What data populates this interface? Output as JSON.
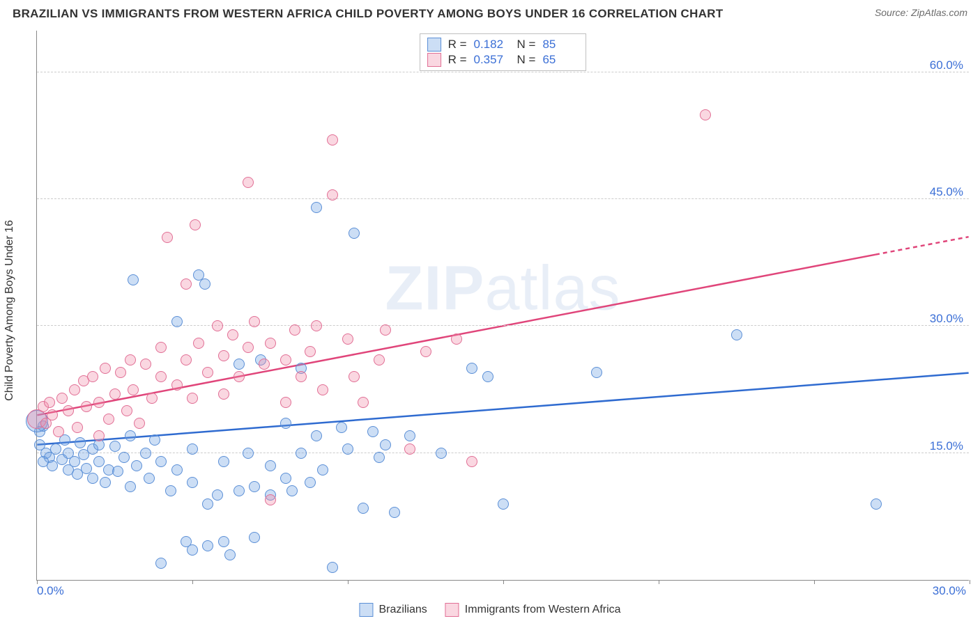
{
  "header": {
    "title": "BRAZILIAN VS IMMIGRANTS FROM WESTERN AFRICA CHILD POVERTY AMONG BOYS UNDER 16 CORRELATION CHART",
    "source_label": "Source: ",
    "source_value": "ZipAtlas.com"
  },
  "chart": {
    "type": "scatter",
    "ylabel": "Child Poverty Among Boys Under 16",
    "xlim": [
      0,
      30
    ],
    "ylim": [
      0,
      65
    ],
    "background_color": "#ffffff",
    "grid_color": "#cccccc",
    "axis_color": "#888888",
    "label_color": "#3b6fd6",
    "yticks": [
      15,
      30,
      45,
      60
    ],
    "ytick_labels": [
      "15.0%",
      "30.0%",
      "45.0%",
      "60.0%"
    ],
    "xticks": [
      0,
      5,
      10,
      15,
      20,
      25,
      30
    ],
    "xtick_labels_shown": {
      "0": "0.0%",
      "30": "30.0%"
    },
    "point_radius": 8,
    "series": [
      {
        "id": "brazilians",
        "label": "Brazilians",
        "color_fill": "rgba(110,160,225,0.35)",
        "color_stroke": "#5b8fd6",
        "R": "0.182",
        "N": "85",
        "trend": {
          "x1": 0,
          "y1": 16.0,
          "x2": 30,
          "y2": 24.5,
          "extrapolate_from": 30,
          "color": "#2f6bd0",
          "width": 2.5
        },
        "points": [
          [
            0.1,
            17.5
          ],
          [
            0.2,
            18.2
          ],
          [
            0.1,
            16.0
          ],
          [
            0.3,
            15.0
          ],
          [
            0.4,
            14.5
          ],
          [
            0.2,
            14.0
          ],
          [
            0.5,
            13.5
          ],
          [
            0.0,
            18.8,
            16
          ],
          [
            0.6,
            15.5
          ],
          [
            0.8,
            14.2
          ],
          [
            0.9,
            16.5
          ],
          [
            1.0,
            15.0
          ],
          [
            1.0,
            13.0
          ],
          [
            1.2,
            14.0
          ],
          [
            1.3,
            12.5
          ],
          [
            1.4,
            16.2
          ],
          [
            1.5,
            14.8
          ],
          [
            1.6,
            13.2
          ],
          [
            1.8,
            15.5
          ],
          [
            1.8,
            12.0
          ],
          [
            2.0,
            14.0
          ],
          [
            2.0,
            16.0
          ],
          [
            2.2,
            11.5
          ],
          [
            2.3,
            13.0
          ],
          [
            2.5,
            15.8
          ],
          [
            2.6,
            12.8
          ],
          [
            2.8,
            14.5
          ],
          [
            3.0,
            17.0
          ],
          [
            3.0,
            11.0
          ],
          [
            3.1,
            35.5
          ],
          [
            3.2,
            13.5
          ],
          [
            3.5,
            15.0
          ],
          [
            3.6,
            12.0
          ],
          [
            3.8,
            16.5
          ],
          [
            4.0,
            14.0
          ],
          [
            4.0,
            2.0
          ],
          [
            4.3,
            10.5
          ],
          [
            4.5,
            30.5
          ],
          [
            4.5,
            13.0
          ],
          [
            4.8,
            4.5
          ],
          [
            5.0,
            11.5
          ],
          [
            5.0,
            3.5
          ],
          [
            5.0,
            15.5
          ],
          [
            5.2,
            36.0
          ],
          [
            5.4,
            35.0
          ],
          [
            5.5,
            9.0
          ],
          [
            5.5,
            4.0
          ],
          [
            5.8,
            10.0
          ],
          [
            6.0,
            14.0
          ],
          [
            6.0,
            4.5
          ],
          [
            6.2,
            3.0
          ],
          [
            6.5,
            25.5
          ],
          [
            6.5,
            10.5
          ],
          [
            6.8,
            15.0
          ],
          [
            7.0,
            11.0
          ],
          [
            7.0,
            5.0
          ],
          [
            7.2,
            26.0
          ],
          [
            7.5,
            13.5
          ],
          [
            7.5,
            10.0
          ],
          [
            8.0,
            12.0
          ],
          [
            8.0,
            18.5
          ],
          [
            8.2,
            10.5
          ],
          [
            8.5,
            15.0
          ],
          [
            8.5,
            25.0
          ],
          [
            8.8,
            11.5
          ],
          [
            9.0,
            17.0
          ],
          [
            9.0,
            44.0
          ],
          [
            9.2,
            13.0
          ],
          [
            9.5,
            1.5
          ],
          [
            9.8,
            18.0
          ],
          [
            10.0,
            15.5
          ],
          [
            10.2,
            41.0
          ],
          [
            10.5,
            8.5
          ],
          [
            10.8,
            17.5
          ],
          [
            11.0,
            14.5
          ],
          [
            11.2,
            16.0
          ],
          [
            11.5,
            8.0
          ],
          [
            12.0,
            17.0
          ],
          [
            13.0,
            15.0
          ],
          [
            14.0,
            25.0
          ],
          [
            14.5,
            24.0
          ],
          [
            15.0,
            9.0
          ],
          [
            18.0,
            24.5
          ],
          [
            22.5,
            29.0
          ],
          [
            27.0,
            9.0
          ]
        ]
      },
      {
        "id": "immigrants_wa",
        "label": "Immigrants from Western Africa",
        "color_fill": "rgba(240,140,170,0.35)",
        "color_stroke": "#e16f95",
        "R": "0.357",
        "N": "65",
        "trend": {
          "x1": 0,
          "y1": 19.5,
          "x2": 27,
          "y2": 38.5,
          "extrapolate_from": 27,
          "extrapolate_to": 30,
          "extrapolate_y2": 40.6,
          "color": "#e0457a",
          "width": 2.5
        },
        "points": [
          [
            0.0,
            19.0,
            14
          ],
          [
            0.2,
            20.5
          ],
          [
            0.3,
            18.5
          ],
          [
            0.4,
            21.0
          ],
          [
            0.5,
            19.5
          ],
          [
            0.7,
            17.5
          ],
          [
            0.8,
            21.5
          ],
          [
            1.0,
            20.0
          ],
          [
            1.2,
            22.5
          ],
          [
            1.3,
            18.0
          ],
          [
            1.5,
            23.5
          ],
          [
            1.6,
            20.5
          ],
          [
            1.8,
            24.0
          ],
          [
            2.0,
            21.0
          ],
          [
            2.0,
            17.0
          ],
          [
            2.2,
            25.0
          ],
          [
            2.3,
            19.0
          ],
          [
            2.5,
            22.0
          ],
          [
            2.7,
            24.5
          ],
          [
            2.9,
            20.0
          ],
          [
            3.0,
            26.0
          ],
          [
            3.1,
            22.5
          ],
          [
            3.3,
            18.5
          ],
          [
            3.5,
            25.5
          ],
          [
            3.7,
            21.5
          ],
          [
            4.0,
            24.0
          ],
          [
            4.0,
            27.5
          ],
          [
            4.2,
            40.5
          ],
          [
            4.5,
            23.0
          ],
          [
            4.8,
            26.0
          ],
          [
            4.8,
            35.0
          ],
          [
            5.0,
            21.5
          ],
          [
            5.1,
            42.0
          ],
          [
            5.2,
            28.0
          ],
          [
            5.5,
            24.5
          ],
          [
            5.8,
            30.0
          ],
          [
            6.0,
            22.0
          ],
          [
            6.0,
            26.5
          ],
          [
            6.3,
            29.0
          ],
          [
            6.5,
            24.0
          ],
          [
            6.8,
            27.5
          ],
          [
            6.8,
            47.0
          ],
          [
            7.0,
            30.5
          ],
          [
            7.3,
            25.5
          ],
          [
            7.5,
            28.0
          ],
          [
            7.5,
            9.5
          ],
          [
            8.0,
            26.0
          ],
          [
            8.0,
            21.0
          ],
          [
            8.3,
            29.5
          ],
          [
            8.5,
            24.0
          ],
          [
            8.8,
            27.0
          ],
          [
            9.0,
            30.0
          ],
          [
            9.2,
            22.5
          ],
          [
            9.5,
            52.0
          ],
          [
            9.5,
            45.5
          ],
          [
            10.0,
            28.5
          ],
          [
            10.2,
            24.0
          ],
          [
            10.5,
            21.0
          ],
          [
            11.0,
            26.0
          ],
          [
            11.2,
            29.5
          ],
          [
            12.0,
            15.5
          ],
          [
            12.5,
            27.0
          ],
          [
            13.5,
            28.5
          ],
          [
            14.0,
            14.0
          ],
          [
            21.5,
            55.0
          ]
        ]
      }
    ],
    "legend_top": {
      "r_label": "R =",
      "n_label": "N ="
    },
    "watermark": {
      "bold": "ZIP",
      "rest": "atlas"
    }
  }
}
